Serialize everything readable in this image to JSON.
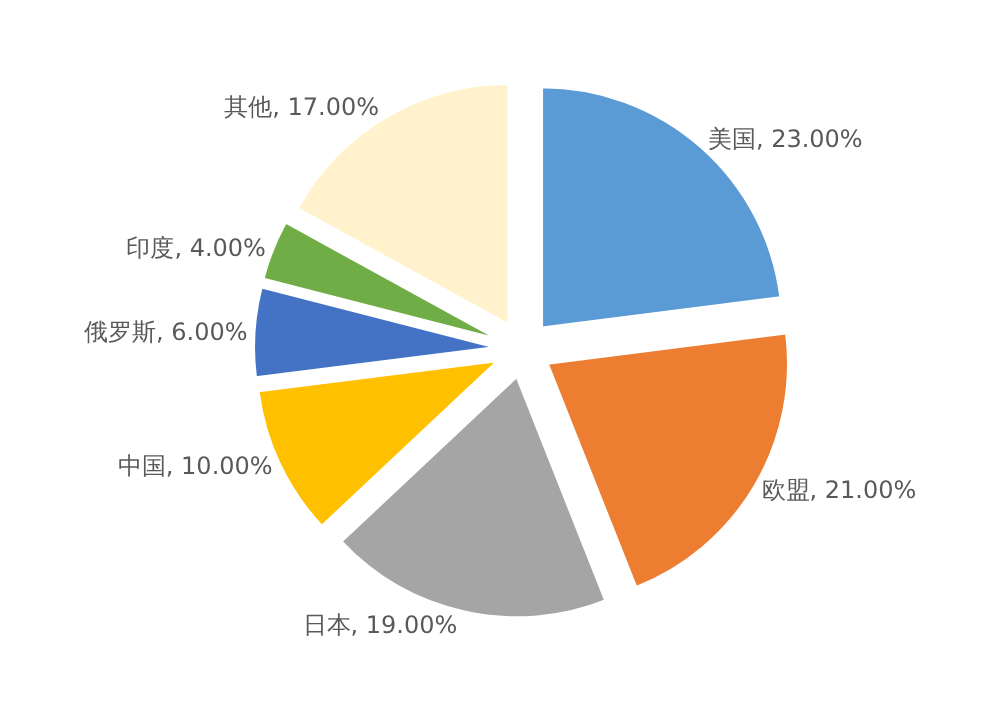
{
  "chart_data": {
    "type": "pie",
    "categories": [
      "美国",
      "欧盟",
      "日本",
      "中国",
      "俄罗斯",
      "印度",
      "其他"
    ],
    "values": [
      23,
      21,
      19,
      10,
      6,
      4,
      17
    ],
    "value_labels": [
      "23.00%",
      "21.00%",
      "19.00%",
      "10.00%",
      "6.00%",
      "4.00%",
      "17.00%"
    ],
    "colors": [
      "#5b9bd5",
      "#ed7d31",
      "#a5a5a5",
      "#ffc000",
      "#4472c4",
      "#70ad47",
      "#fff2cc"
    ],
    "legend": false
  }
}
